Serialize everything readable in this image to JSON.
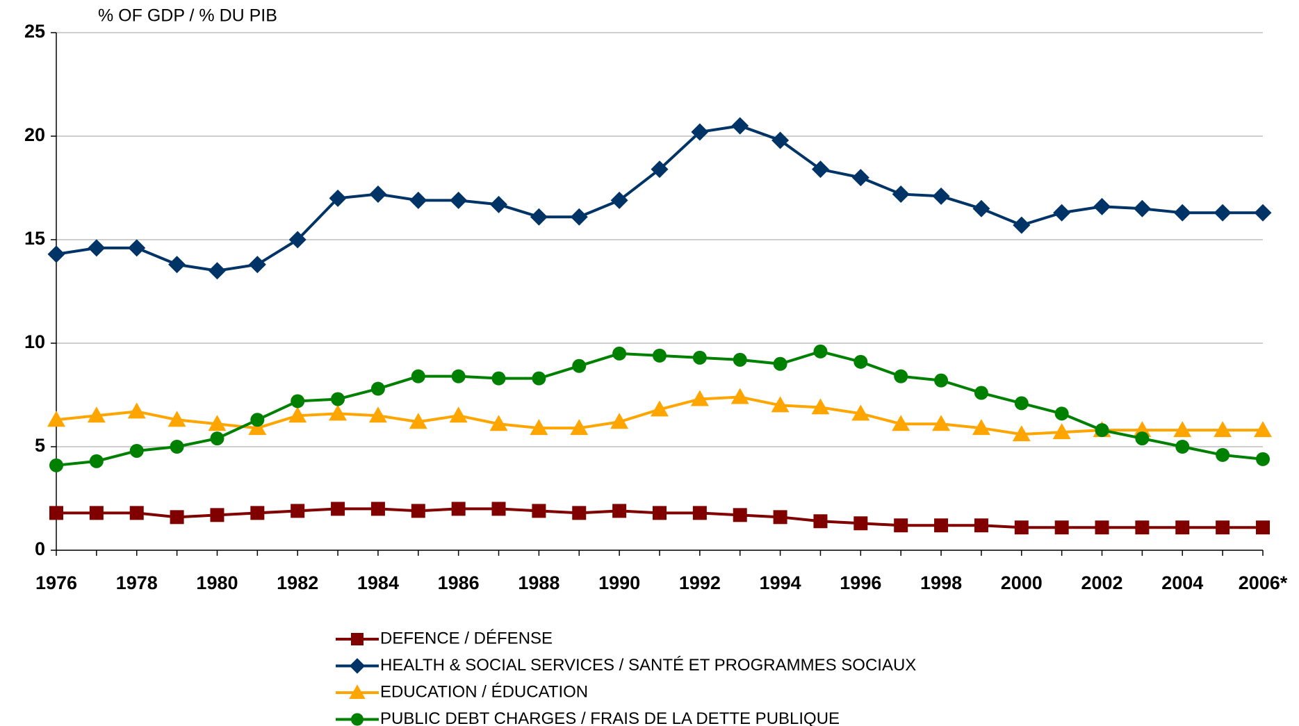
{
  "chart_data": {
    "type": "line",
    "y_axis_label": "% OF GDP / % DU PIB",
    "categories": [
      "1976",
      null,
      "1978",
      null,
      "1980",
      null,
      "1982",
      null,
      "1984",
      null,
      "1986",
      null,
      "1988",
      null,
      "1990",
      null,
      "1992",
      null,
      "1994",
      null,
      "1996",
      null,
      "1998",
      null,
      "2000",
      null,
      "2002",
      null,
      "2004",
      null,
      "2006*"
    ],
    "series": [
      {
        "name": "DEFENCE / DÉFENSE",
        "color": "#800000",
        "marker": "square",
        "values": [
          1.8,
          1.8,
          1.8,
          1.6,
          1.7,
          1.8,
          1.9,
          2.0,
          2.0,
          1.9,
          2.0,
          2.0,
          1.9,
          1.8,
          1.9,
          1.8,
          1.8,
          1.7,
          1.6,
          1.4,
          1.3,
          1.2,
          1.2,
          1.2,
          1.1,
          1.1,
          1.1,
          1.1,
          1.1,
          1.1,
          1.1
        ]
      },
      {
        "name": "HEALTH & SOCIAL SERVICES / SANTÉ ET PROGRAMMES SOCIAUX",
        "color": "#003366",
        "marker": "diamond",
        "values": [
          14.3,
          14.6,
          14.6,
          13.8,
          13.5,
          13.8,
          15.0,
          17.0,
          17.2,
          16.9,
          16.9,
          16.7,
          16.1,
          16.1,
          16.9,
          18.4,
          20.2,
          20.5,
          19.8,
          18.4,
          18.0,
          17.2,
          17.1,
          16.5,
          15.7,
          16.3,
          16.6,
          16.5,
          16.3,
          16.3,
          16.3
        ]
      },
      {
        "name": "EDUCATION / ÉDUCATION",
        "color": "#ffa500",
        "marker": "triangle",
        "values": [
          6.3,
          6.5,
          6.7,
          6.3,
          6.1,
          5.9,
          6.5,
          6.6,
          6.5,
          6.2,
          6.5,
          6.1,
          5.9,
          5.9,
          6.2,
          6.8,
          7.3,
          7.4,
          7.0,
          6.9,
          6.6,
          6.1,
          6.1,
          5.9,
          5.6,
          5.7,
          5.8,
          5.8,
          5.8,
          5.8,
          5.8
        ]
      },
      {
        "name": "PUBLIC DEBT CHARGES / FRAIS DE LA DETTE PUBLIQUE",
        "color": "#008000",
        "marker": "circle",
        "values": [
          4.1,
          4.3,
          4.8,
          5.0,
          5.4,
          6.3,
          7.2,
          7.3,
          7.8,
          8.4,
          8.4,
          8.3,
          8.3,
          8.9,
          9.5,
          9.4,
          9.3,
          9.2,
          9.0,
          9.6,
          9.1,
          8.4,
          8.2,
          7.6,
          7.1,
          6.6,
          5.8,
          5.4,
          5.0,
          4.6,
          4.4
        ]
      }
    ],
    "ylim": [
      0,
      25
    ],
    "yticks": [
      0,
      5,
      10,
      15,
      20,
      25
    ],
    "grid": true,
    "legend": "bottom"
  }
}
